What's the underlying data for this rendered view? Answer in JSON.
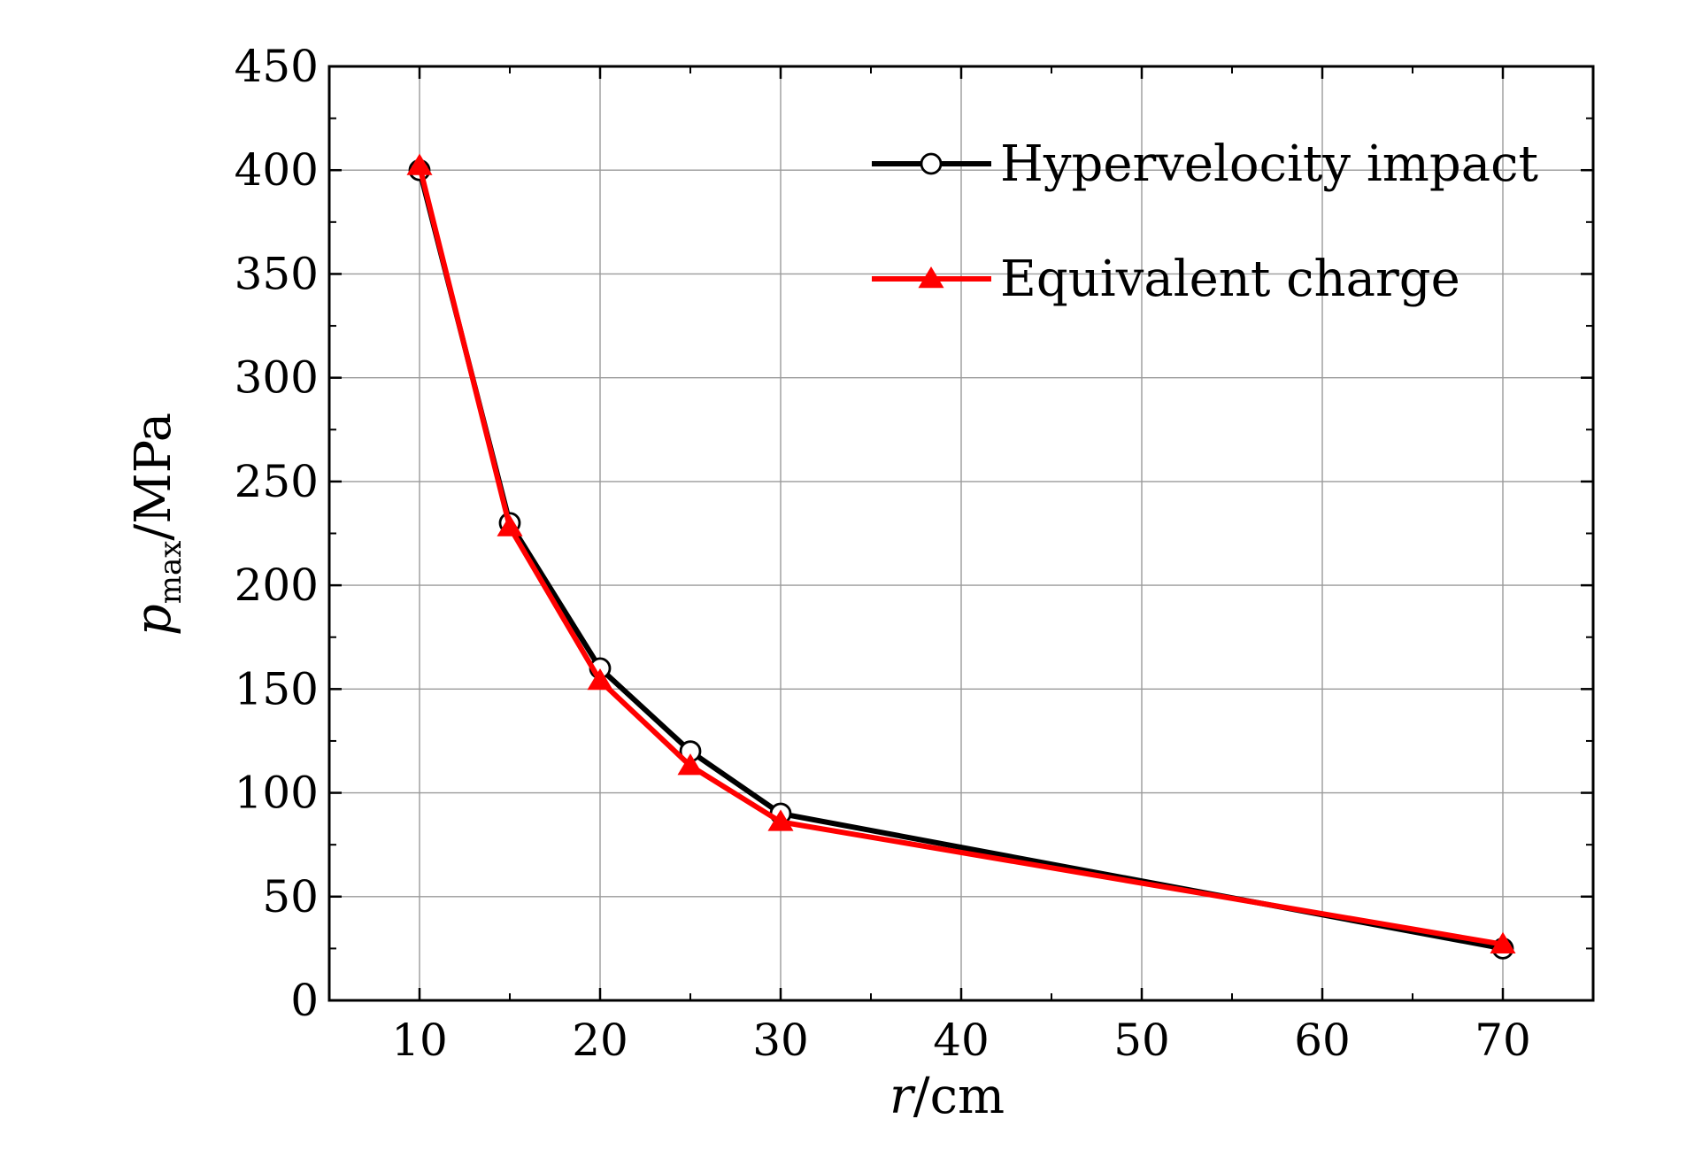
{
  "chart_data": {
    "type": "line",
    "xlabel": {
      "italic": "r",
      "rest": "/cm"
    },
    "ylabel": {
      "italic": "p",
      "subscript": "max",
      "rest": "/MPa"
    },
    "xlim": [
      5,
      75
    ],
    "ylim": [
      0,
      450
    ],
    "x_ticks": [
      10,
      20,
      30,
      40,
      50,
      60,
      70
    ],
    "x_tick_labels": [
      "10",
      "20",
      "30",
      "40",
      "50",
      "60",
      "70"
    ],
    "y_ticks": [
      0,
      50,
      100,
      150,
      200,
      250,
      300,
      350,
      400,
      450
    ],
    "y_tick_labels": [
      "0",
      "50",
      "100",
      "150",
      "200",
      "250",
      "300",
      "350",
      "400",
      "450"
    ],
    "grid": true,
    "legend_position": "top-right",
    "x": [
      10,
      15,
      20,
      25,
      30,
      70
    ],
    "series": [
      {
        "name": "Hypervelocity impact",
        "values": [
          400,
          230,
          160,
          120,
          90,
          25
        ],
        "color": "#000000",
        "marker": "open-circle"
      },
      {
        "name": "Equivalent charge",
        "values": [
          402,
          228,
          154,
          113,
          86,
          27
        ],
        "color": "#ff0000",
        "marker": "filled-triangle"
      }
    ]
  }
}
